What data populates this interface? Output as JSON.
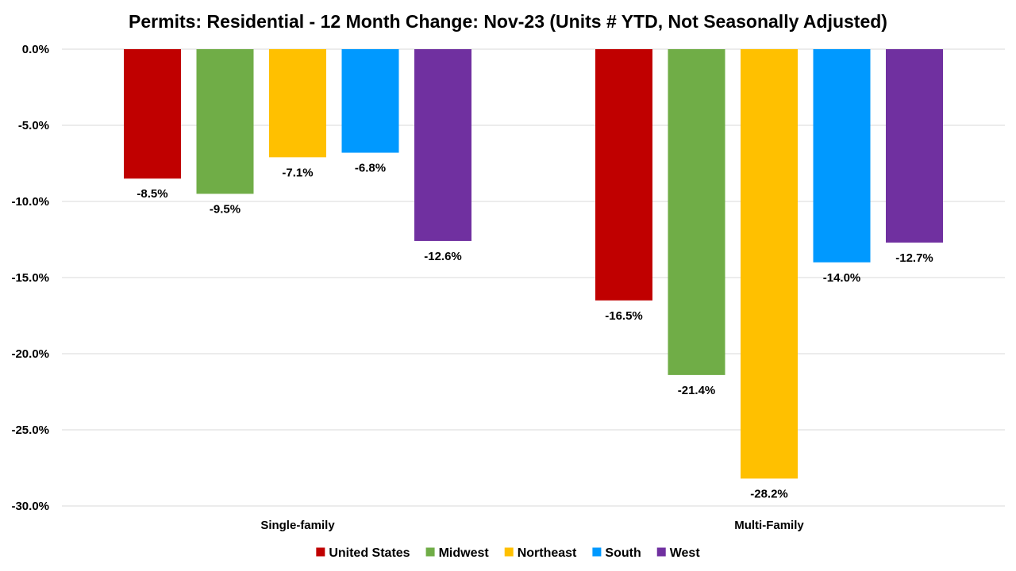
{
  "chart_data": {
    "type": "bar",
    "title": "Permits: Residential - 12 Month Change:  Nov-23 (Units # YTD, Not Seasonally Adjusted)",
    "categories": [
      "Single-family",
      "Multi-Family"
    ],
    "series": [
      {
        "name": "United States",
        "color": "#c00000",
        "values": [
          -8.5,
          -16.5
        ],
        "labels": [
          "-8.5%",
          "-16.5%"
        ]
      },
      {
        "name": "Midwest",
        "color": "#70ad47",
        "values": [
          -9.5,
          -21.4
        ],
        "labels": [
          "-9.5%",
          "-21.4%"
        ]
      },
      {
        "name": "Northeast",
        "color": "#ffc000",
        "values": [
          -7.1,
          -28.2
        ],
        "labels": [
          "-7.1%",
          "-28.2%"
        ]
      },
      {
        "name": "South",
        "color": "#0099ff",
        "values": [
          -6.8,
          -14.0
        ],
        "labels": [
          "-6.8%",
          "-14.0%"
        ]
      },
      {
        "name": "West",
        "color": "#7030a0",
        "values": [
          -12.6,
          -12.7
        ],
        "labels": [
          "-12.6%",
          "-12.7%"
        ]
      }
    ],
    "yticks": [
      {
        "value": 0,
        "label": "0.0%"
      },
      {
        "value": -5,
        "label": "-5.0%"
      },
      {
        "value": -10,
        "label": "-10.0%"
      },
      {
        "value": -15,
        "label": "-15.0%"
      },
      {
        "value": -20,
        "label": "-20.0%"
      },
      {
        "value": -25,
        "label": "-25.0%"
      },
      {
        "value": -30,
        "label": "-30.0%"
      }
    ],
    "ylim": [
      -30,
      0
    ],
    "xlabel": "",
    "ylabel": "",
    "grid": true,
    "legend_position": "bottom"
  }
}
